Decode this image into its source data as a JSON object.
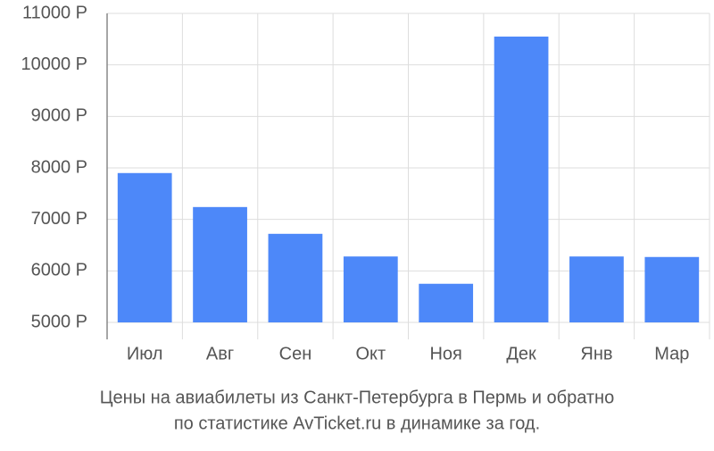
{
  "chart_data": {
    "type": "bar",
    "title": "Цены на авиабилеты из Санкт-Петербурга в Пермь и обратно",
    "subtitle": "по статистике AvTicket.ru в динамике за год.",
    "categories": [
      "Июл",
      "Авг",
      "Сен",
      "Окт",
      "Ноя",
      "Дек",
      "Янв",
      "Мар"
    ],
    "values": [
      7900,
      7240,
      6720,
      6280,
      5750,
      10550,
      6280,
      6270
    ],
    "color": "#4d88f9",
    "ylim": [
      5000,
      11000
    ],
    "yticks": [
      {
        "value": 5000,
        "label": "5000 Р"
      },
      {
        "value": 6000,
        "label": "6000 Р"
      },
      {
        "value": 7000,
        "label": "7000 Р"
      },
      {
        "value": 8000,
        "label": "8000 Р"
      },
      {
        "value": 9000,
        "label": "9000 Р"
      },
      {
        "value": 10000,
        "label": "10000 Р"
      },
      {
        "value": 11000,
        "label": "11000 Р"
      }
    ],
    "grid": true
  }
}
